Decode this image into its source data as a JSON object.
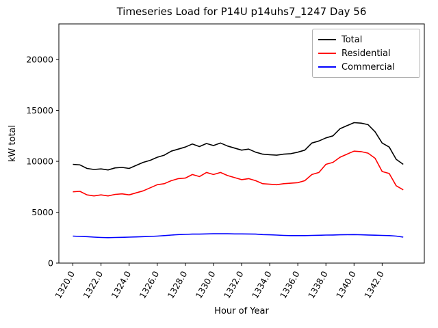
{
  "figure": {
    "title": "Timeseries Load for P14U p14uhs7_1247  Day 56",
    "xlabel": "Hour of Year",
    "ylabel": "kW total"
  },
  "chart_data": {
    "type": "line",
    "title": "Timeseries Load for P14U p14uhs7_1247  Day 56",
    "xlabel": "Hour of Year",
    "ylabel": "kW total",
    "grid": false,
    "legend_position": "upper right",
    "xlim": [
      1319,
      1345
    ],
    "ylim": [
      0,
      23500
    ],
    "xticks": [
      1320,
      1322,
      1324,
      1326,
      1328,
      1330,
      1332,
      1334,
      1336,
      1338,
      1340,
      1342
    ],
    "xtick_labels": [
      "1320.0",
      "1322.0",
      "1324.0",
      "1326.0",
      "1328.0",
      "1330.0",
      "1332.0",
      "1334.0",
      "1336.0",
      "1338.0",
      "1340.0",
      "1342.0"
    ],
    "yticks": [
      0,
      5000,
      10000,
      15000,
      20000
    ],
    "ytick_labels": [
      "0",
      "5000",
      "10000",
      "15000",
      "20000"
    ],
    "x": [
      1320.0,
      1320.5,
      1321.0,
      1321.5,
      1322.0,
      1322.5,
      1323.0,
      1323.5,
      1324.0,
      1324.5,
      1325.0,
      1325.5,
      1326.0,
      1326.5,
      1327.0,
      1327.5,
      1328.0,
      1328.5,
      1329.0,
      1329.5,
      1330.0,
      1330.5,
      1331.0,
      1331.5,
      1332.0,
      1332.5,
      1333.0,
      1333.5,
      1334.0,
      1334.5,
      1335.0,
      1335.5,
      1336.0,
      1336.5,
      1337.0,
      1337.5,
      1338.0,
      1338.5,
      1339.0,
      1339.5,
      1340.0,
      1340.5,
      1341.0,
      1341.5,
      1342.0,
      1342.5,
      1343.0,
      1343.5
    ],
    "series": [
      {
        "name": "Total",
        "color": "#000000",
        "values": [
          9700,
          9650,
          9300,
          9200,
          9250,
          9150,
          9350,
          9400,
          9300,
          9600,
          9900,
          10100,
          10400,
          10600,
          11000,
          11200,
          11400,
          11700,
          11450,
          11750,
          11550,
          11800,
          11500,
          11300,
          11100,
          11200,
          10900,
          10700,
          10650,
          10600,
          10700,
          10750,
          10900,
          11100,
          11800,
          12000,
          12300,
          12500,
          13200,
          13500,
          13800,
          13750,
          13600,
          12900,
          11800,
          11400,
          10200,
          9700
        ]
      },
      {
        "name": "Residential",
        "color": "#ff0000",
        "values": [
          7000,
          7050,
          6700,
          6600,
          6700,
          6600,
          6750,
          6800,
          6700,
          6900,
          7100,
          7400,
          7700,
          7800,
          8100,
          8300,
          8350,
          8700,
          8500,
          8900,
          8700,
          8900,
          8600,
          8400,
          8200,
          8300,
          8100,
          7800,
          7750,
          7700,
          7800,
          7850,
          7900,
          8100,
          8700,
          8900,
          9700,
          9900,
          10400,
          10700,
          11000,
          10950,
          10800,
          10300,
          9000,
          8800,
          7600,
          7200
        ]
      },
      {
        "name": "Commercial",
        "color": "#0000ff",
        "values": [
          2650,
          2620,
          2600,
          2550,
          2520,
          2500,
          2520,
          2530,
          2550,
          2570,
          2600,
          2620,
          2650,
          2700,
          2750,
          2800,
          2820,
          2850,
          2850,
          2870,
          2880,
          2880,
          2880,
          2870,
          2870,
          2860,
          2850,
          2800,
          2780,
          2750,
          2720,
          2700,
          2700,
          2700,
          2720,
          2730,
          2750,
          2760,
          2780,
          2790,
          2800,
          2780,
          2760,
          2740,
          2720,
          2700,
          2650,
          2550
        ]
      }
    ]
  }
}
